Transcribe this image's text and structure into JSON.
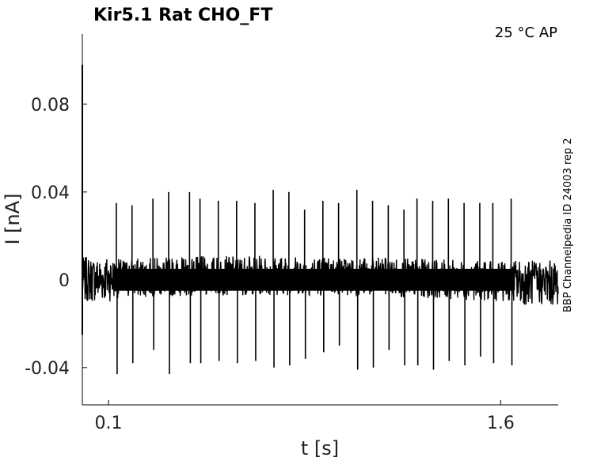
{
  "chart_data": {
    "type": "line",
    "title": "Kir5.1  Rat  CHO_FT",
    "condition": "25 °C  AP",
    "side_label": "BBP Channelpedia ID 24003 rep 2",
    "xlabel": "t [s]",
    "ylabel": "I [nA]",
    "xlim": [
      0.0,
      1.82
    ],
    "ylim": [
      -0.057,
      0.112
    ],
    "x_ticks": [
      0.1,
      1.6
    ],
    "x_tick_labels": [
      "0.1",
      "1.6"
    ],
    "y_ticks": [
      -0.04,
      0,
      0.04,
      0.08
    ],
    "y_tick_labels": [
      "-0.04",
      "0",
      "0.04",
      "0.08"
    ],
    "grid": false,
    "legend": "none",
    "series": [
      {
        "color": "#000000",
        "baseline": 0.0,
        "noise_amplitude": 0.009,
        "spike_times": [
          0.13,
          0.19,
          0.27,
          0.33,
          0.41,
          0.45,
          0.52,
          0.59,
          0.66,
          0.73,
          0.79,
          0.85,
          0.92,
          0.98,
          1.05,
          1.11,
          1.17,
          1.23,
          1.28,
          1.34,
          1.4,
          1.46,
          1.52,
          1.57,
          1.64
        ],
        "spike_peaks": [
          0.035,
          0.034,
          0.037,
          0.04,
          0.04,
          0.037,
          0.036,
          0.036,
          0.035,
          0.041,
          0.04,
          0.032,
          0.036,
          0.035,
          0.041,
          0.036,
          0.034,
          0.032,
          0.037,
          0.036,
          0.037,
          0.035,
          0.035,
          0.035,
          0.037
        ],
        "spike_troughs": [
          -0.043,
          -0.038,
          -0.032,
          -0.043,
          -0.038,
          -0.038,
          -0.037,
          -0.038,
          -0.037,
          -0.04,
          -0.039,
          -0.036,
          -0.033,
          -0.03,
          -0.041,
          -0.04,
          -0.032,
          -0.039,
          -0.039,
          -0.041,
          -0.037,
          -0.039,
          -0.035,
          -0.038,
          -0.039
        ],
        "initial_transient_peak": 0.098,
        "initial_transient_trough": -0.025
      }
    ]
  }
}
